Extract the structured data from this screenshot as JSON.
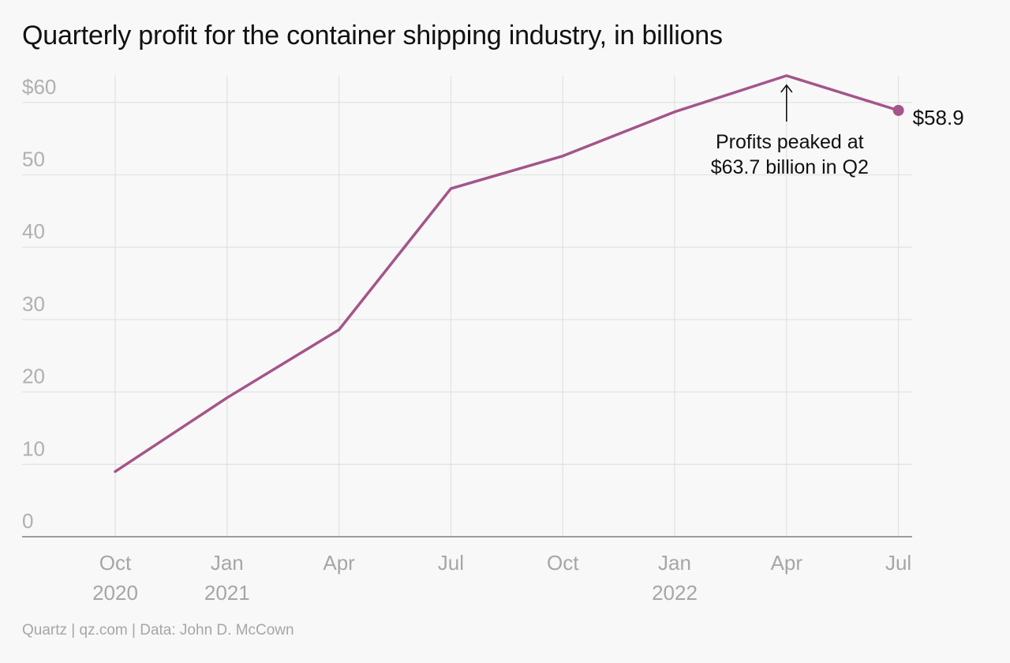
{
  "chart_data": {
    "type": "line",
    "title": "Quarterly profit for the container shipping industry, in billions",
    "xlabel": "",
    "ylabel": "",
    "x": [
      "2020-10",
      "2021-01",
      "2021-04",
      "2021-07",
      "2021-10",
      "2022-01",
      "2022-04",
      "2022-07"
    ],
    "x_tick_labels": [
      [
        "Oct",
        "2020"
      ],
      [
        "Jan",
        "2021"
      ],
      [
        "Apr",
        ""
      ],
      [
        "Jul",
        ""
      ],
      [
        "Oct",
        ""
      ],
      [
        "Jan",
        "2022"
      ],
      [
        "Apr",
        ""
      ],
      [
        "Jul",
        ""
      ]
    ],
    "series": [
      {
        "values": [
          9.0,
          19.2,
          28.6,
          48.1,
          52.6,
          58.7,
          63.7,
          58.9
        ],
        "color": "#a4558a"
      }
    ],
    "ylim": [
      0,
      65
    ],
    "y_ticks": [
      0,
      10,
      20,
      30,
      40,
      50,
      60
    ],
    "y_tick_labels": [
      "0",
      "10",
      "20",
      "30",
      "40",
      "50",
      "$60"
    ],
    "grid": true,
    "annotations": [
      {
        "x": "2022-04",
        "lines": [
          "Profits peaked at",
          "$63.7 billion in Q2"
        ]
      }
    ],
    "end_label": "$58.9"
  },
  "source": "Quartz | qz.com | Data: John D. McCown"
}
